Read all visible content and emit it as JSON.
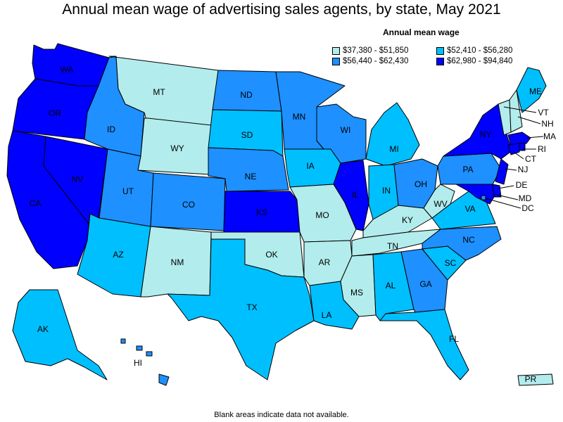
{
  "title": "Annual mean wage of advertising sales agents, by state, May 2021",
  "legend": {
    "title": "Annual mean wage",
    "items": [
      {
        "label": "$37,380 - $51,850",
        "color": "#b3ecec"
      },
      {
        "label": "$52,410 - $56,280",
        "color": "#00bfff"
      },
      {
        "label": "$56,440 - $62,430",
        "color": "#1e90ff"
      },
      {
        "label": "$62,980 - $94,840",
        "color": "#0000ff"
      }
    ]
  },
  "footnote": "Blank areas indicate data not available.",
  "colors": {
    "c1": "#b3ecec",
    "c2": "#00bfff",
    "c3": "#1e90ff",
    "c4": "#0000ff"
  },
  "states": {
    "WA": "WA",
    "OR": "OR",
    "CA": "CA",
    "NV": "NV",
    "ID": "ID",
    "MT": "MT",
    "WY": "WY",
    "UT": "UT",
    "CO": "CO",
    "AZ": "AZ",
    "NM": "NM",
    "ND": "ND",
    "SD": "SD",
    "NE": "NE",
    "KS": "KS",
    "OK": "OK",
    "TX": "TX",
    "MN": "MN",
    "IA": "IA",
    "MO": "MO",
    "AR": "AR",
    "LA": "LA",
    "WI": "WI",
    "IL": "IL",
    "MI": "MI",
    "IN": "IN",
    "OH": "OH",
    "KY": "KY",
    "TN": "TN",
    "MS": "MS",
    "AL": "AL",
    "GA": "GA",
    "FL": "FL",
    "SC": "SC",
    "NC": "NC",
    "VA": "VA",
    "WV": "WV",
    "PA": "PA",
    "NY": "NY",
    "ME": "ME",
    "VT": "VT",
    "NH": "NH",
    "MA": "MA",
    "RI": "RI",
    "CT": "CT",
    "NJ": "NJ",
    "DE": "DE",
    "MD": "MD",
    "DC": "DC",
    "AK": "AK",
    "HI": "HI",
    "PR": "PR"
  }
}
